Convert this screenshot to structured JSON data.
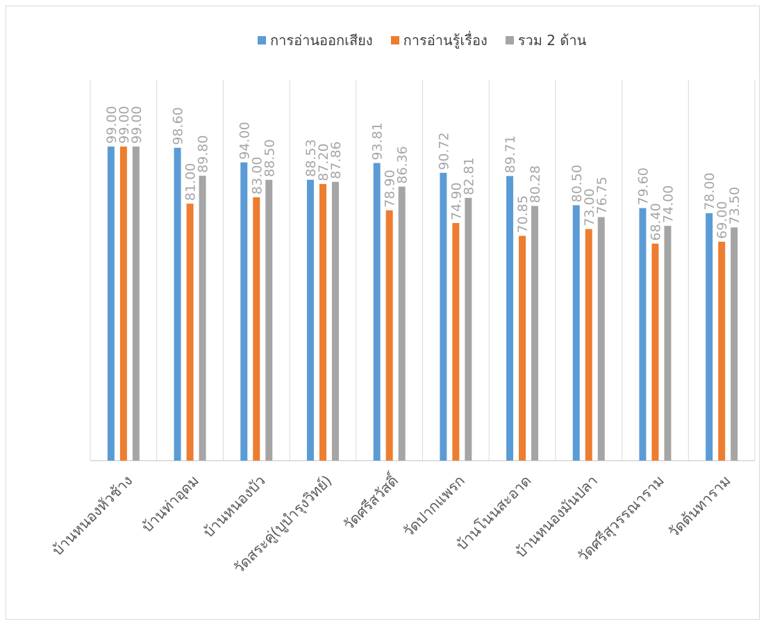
{
  "chart_data": {
    "type": "bar",
    "categories": [
      "บ้านหนองหัวช้าง",
      "บ้านท่าอุดม",
      "บ้านหนองบัว",
      "วัดสระคู่(บูบำรุงวิทย์)",
      "วัดศรีสวัสดิ์",
      "วัดปากแพรก",
      "บ้านโนนสะอาด",
      "บ้านหนองมันปลา",
      "วัดศรีสุวรรณาราม",
      "วัดต้นทาราม"
    ],
    "series": [
      {
        "name": "การอ่านออกเสียง",
        "color": "#5b9bd5",
        "values": [
          99.0,
          98.6,
          94.0,
          88.53,
          93.81,
          90.72,
          89.71,
          80.5,
          79.6,
          78.0
        ],
        "labels": [
          "99.00",
          "98.60",
          "94.00",
          "88.53",
          "93.81",
          "90.72",
          "89.71",
          "80.50",
          "79.60",
          "78.00"
        ]
      },
      {
        "name": "การอ่านรู้เรื่อง",
        "color": "#ed7d31",
        "values": [
          99.0,
          81.0,
          83.0,
          87.2,
          78.9,
          74.9,
          70.85,
          73.0,
          68.4,
          69.0
        ],
        "labels": [
          "99.00",
          "81.00",
          "83.00",
          "87.20",
          "78.90",
          "74.90",
          "70.85",
          "73.00",
          "68.40",
          "69.00"
        ]
      },
      {
        "name": "รวม 2 ด้าน",
        "color": "#a5a5a5",
        "values": [
          99.0,
          89.8,
          88.5,
          87.86,
          86.36,
          82.81,
          80.28,
          76.75,
          74.0,
          73.5
        ],
        "labels": [
          "99.00",
          "89.80",
          "88.50",
          "87.86",
          "86.36",
          "82.81",
          "80.28",
          "76.75",
          "74.00",
          "73.50"
        ]
      }
    ],
    "ylim": [
      0,
      120
    ],
    "grid": "vertical category separators",
    "legend_position": "top"
  }
}
